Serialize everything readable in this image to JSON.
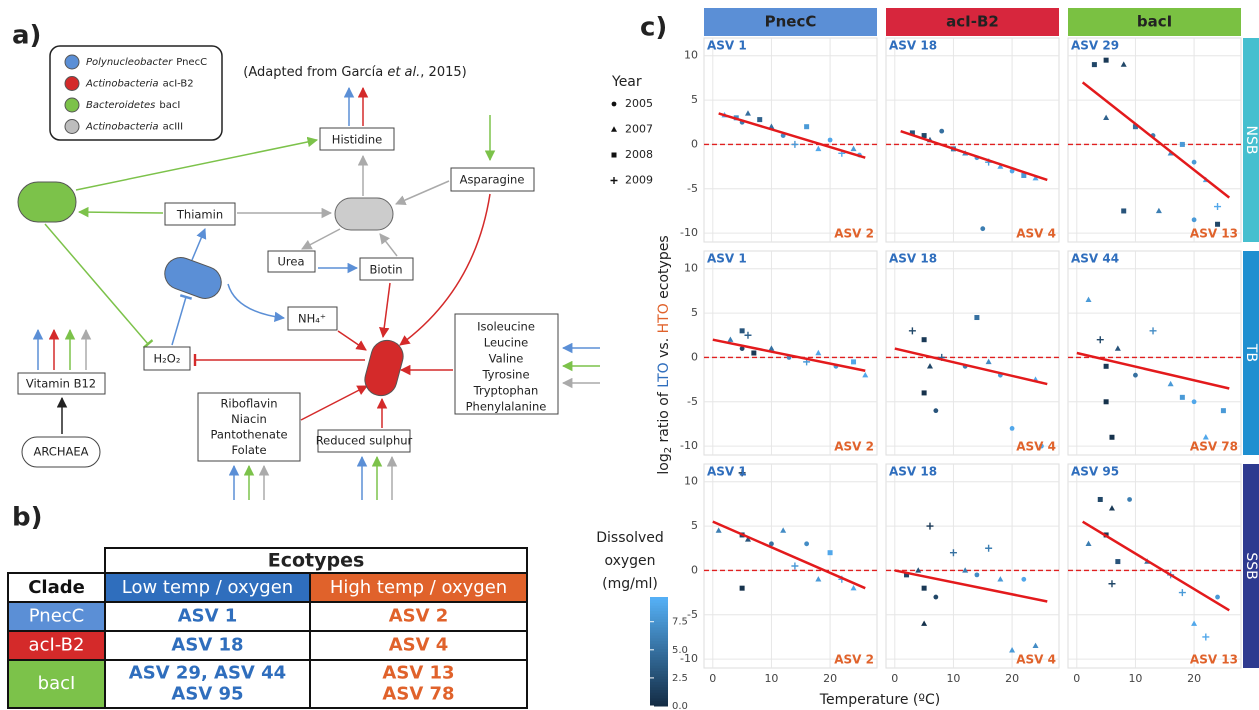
{
  "panel_a": {
    "label": "a)",
    "legend": [
      {
        "genus": "Polynucleobacter",
        "group": "PnecC",
        "color": "#5b8fd6"
      },
      {
        "genus": "Actinobacteria",
        "group": "acI-B2",
        "color": "#d42a2a"
      },
      {
        "genus": "Bacteroidetes",
        "group": "bacI",
        "color": "#7cc24a"
      },
      {
        "genus": "Actinobacteria",
        "group": "acIII",
        "color": "#bdbdbd"
      }
    ],
    "citation": [
      "(Adapted from García ",
      "et al.",
      ", 2015)"
    ],
    "nodes": {
      "histidine": "Histidine",
      "asparagine": "Asparagine",
      "thiamin": "Thiamin",
      "urea": "Urea",
      "biotin": "Biotin",
      "ammonium": "NH₄⁺",
      "peroxide": "H₂O₂",
      "b12": "Vitamin B12",
      "archaea": "ARCHAEA",
      "sulphur": "Reduced sulphur",
      "amino_acids": [
        "Isoleucine",
        "Leucine",
        "Valine",
        "Tyrosine",
        "Tryptophan",
        "Phenylalanine"
      ],
      "vitamins": [
        "Riboflavin",
        "Niacin",
        "Pantothenate",
        "Folate"
      ]
    }
  },
  "panel_b": {
    "label": "b)",
    "header": "Ecotypes",
    "columns": [
      "Clade",
      "Low temp / oxygen",
      "High temp / oxygen"
    ],
    "rows": [
      {
        "clade": "PnecC",
        "color": "#5b8fd6",
        "low": [
          "ASV 1"
        ],
        "high": [
          "ASV 2"
        ]
      },
      {
        "clade": "acI-B2",
        "color": "#d42a2a",
        "low": [
          "ASV 18"
        ],
        "high": [
          "ASV 4"
        ]
      },
      {
        "clade": "bacI",
        "color": "#7cc24a",
        "low": [
          "ASV 29, ASV 44",
          "ASV 95"
        ],
        "high": [
          "ASV 13",
          "ASV 78"
        ]
      }
    ]
  },
  "chart_data": {
    "type": "scatter",
    "label": "c)",
    "xlabel": "Temperature (ºC)",
    "ylabel": [
      "log",
      "2",
      " ratio of ",
      "LTO",
      " vs. ",
      "HTO",
      " ecotypes"
    ],
    "xlim": [
      -1.5,
      28
    ],
    "xticks": [
      0,
      10,
      20
    ],
    "ylim": [
      -11,
      12
    ],
    "yticks": [
      10,
      5,
      0,
      -5,
      -10
    ],
    "hline": 0,
    "columns": [
      {
        "name": "PnecC",
        "color": "#5b8fd6"
      },
      {
        "name": "acI-B2",
        "color": "#d7263d"
      },
      {
        "name": "bacI",
        "color": "#7ac142"
      }
    ],
    "rows": [
      {
        "name": "NSB",
        "color": "#46bfcf"
      },
      {
        "name": "TB",
        "color": "#1f8fd0"
      },
      {
        "name": "SSB",
        "color": "#2e3a8f"
      }
    ],
    "year_legend": {
      "title": "Year",
      "values": [
        2005,
        2007,
        2008,
        2009
      ]
    },
    "colorbar": {
      "title": [
        "Dissolved",
        "oxygen",
        "(mg/ml)"
      ],
      "lim": [
        0,
        9.7
      ],
      "ticks": [
        {
          "value": 0,
          "label": "0.0"
        },
        {
          "value": 2.5,
          "label": "2.5"
        },
        {
          "value": 5,
          "label": "5.0"
        },
        {
          "value": 7.5,
          "label": "7.5"
        }
      ]
    },
    "facets": [
      [
        {
          "lto": "ASV 1",
          "hto": "ASV 2",
          "x": [
            2,
            4,
            5,
            6,
            8,
            10,
            12,
            14,
            16,
            18,
            20,
            22,
            24,
            25
          ],
          "y": [
            3.3,
            3,
            2.5,
            3.5,
            2.8,
            2,
            1,
            0,
            2,
            -0.5,
            0.5,
            -1,
            -0.5,
            -1.2
          ],
          "year": [
            2007,
            2008,
            2005,
            2007,
            2008,
            2007,
            2005,
            2009,
            2008,
            2007,
            2005,
            2009,
            2007,
            2005
          ],
          "oxygen": [
            9,
            7,
            6,
            5,
            4,
            5,
            7,
            8,
            8,
            9,
            9,
            9,
            8,
            9
          ],
          "fit_x": [
            1,
            26
          ],
          "fit_y": [
            3.5,
            -1.5
          ]
        },
        {
          "lto": "ASV 18",
          "hto": "ASV 4",
          "x": [
            3,
            5,
            6,
            8,
            10,
            12,
            14,
            16,
            18,
            20,
            22,
            24,
            15
          ],
          "y": [
            1.3,
            1,
            0.5,
            1.5,
            -0.5,
            -1,
            -1.5,
            -2,
            -2.5,
            -3,
            -3.5,
            -3.8,
            -9.5
          ],
          "year": [
            2008,
            2008,
            2007,
            2005,
            2008,
            2007,
            2005,
            2009,
            2007,
            2005,
            2008,
            2007,
            2005
          ],
          "oxygen": [
            3,
            2,
            4,
            5,
            6,
            7,
            8,
            8,
            9,
            9,
            8,
            9,
            6
          ],
          "fit_x": [
            1,
            26
          ],
          "fit_y": [
            1.5,
            -4
          ]
        },
        {
          "lto": "ASV 29",
          "hto": "ASV 13",
          "x": [
            3,
            5,
            8,
            5,
            10,
            13,
            16,
            18,
            20,
            22,
            24,
            8,
            14,
            20,
            24
          ],
          "y": [
            9,
            9.5,
            9,
            3,
            2,
            1,
            -1,
            0,
            -2,
            -4,
            -7,
            -7.5,
            -7.5,
            -8.5,
            -9
          ],
          "year": [
            2008,
            2008,
            2007,
            2007,
            2008,
            2005,
            2007,
            2008,
            2005,
            2007,
            2009,
            2008,
            2007,
            2005,
            2008
          ],
          "oxygen": [
            2,
            1,
            2,
            4,
            5,
            6,
            7,
            8,
            8,
            9,
            9,
            3,
            6,
            8,
            2
          ],
          "fit_x": [
            1,
            26
          ],
          "fit_y": [
            7,
            -6
          ]
        }
      ],
      [
        {
          "lto": "ASV 1",
          "hto": "ASV 2",
          "x": [
            3,
            5,
            5,
            6,
            7,
            10,
            13,
            16,
            18,
            21,
            24,
            26
          ],
          "y": [
            2,
            3,
            1,
            2.5,
            0.5,
            1,
            0,
            -0.5,
            0.5,
            -1,
            -0.5,
            -2
          ],
          "year": [
            2007,
            2008,
            2005,
            2009,
            2008,
            2007,
            2005,
            2009,
            2007,
            2005,
            2008,
            2007
          ],
          "oxygen": [
            6,
            3,
            2,
            4,
            1,
            5,
            7,
            8,
            9,
            8,
            9,
            9
          ],
          "fit_x": [
            0,
            26
          ],
          "fit_y": [
            2,
            -1.5
          ]
        },
        {
          "lto": "ASV 18",
          "hto": "ASV 4",
          "x": [
            3,
            5,
            5,
            6,
            7,
            8,
            12,
            14,
            16,
            18,
            20,
            24,
            25
          ],
          "y": [
            3,
            2,
            -4,
            -1,
            -6,
            0,
            -1,
            4.5,
            -0.5,
            -2,
            -8,
            -2.5,
            -10
          ],
          "year": [
            2009,
            2008,
            2008,
            2007,
            2005,
            2009,
            2005,
            2008,
            2007,
            2005,
            2005,
            2007,
            2005
          ],
          "oxygen": [
            2,
            1,
            0.5,
            2,
            3,
            4,
            6,
            5,
            7,
            8,
            9,
            9,
            9
          ],
          "fit_x": [
            0,
            26
          ],
          "fit_y": [
            1,
            -3
          ]
        },
        {
          "lto": "ASV 44",
          "hto": "ASV 78",
          "x": [
            2,
            4,
            5,
            5,
            6,
            7,
            10,
            13,
            16,
            18,
            20,
            22,
            25
          ],
          "y": [
            6.5,
            2,
            -1,
            -5,
            -9,
            1,
            -2,
            3,
            -3,
            -4.5,
            -5,
            -9,
            -6
          ],
          "year": [
            2007,
            2009,
            2008,
            2008,
            2008,
            2007,
            2005,
            2009,
            2007,
            2008,
            2005,
            2007,
            2008
          ],
          "oxygen": [
            8,
            2,
            1,
            0.5,
            0.5,
            3,
            5,
            7,
            8,
            8,
            9,
            9,
            8
          ],
          "fit_x": [
            0,
            26
          ],
          "fit_y": [
            0.5,
            -3.5
          ]
        }
      ],
      [
        {
          "lto": "ASV 1",
          "hto": "ASV 2",
          "x": [
            1,
            5,
            5,
            6,
            5,
            10,
            12,
            14,
            16,
            18,
            20,
            22,
            24
          ],
          "y": [
            4.5,
            11,
            4,
            3.5,
            -2,
            3,
            4.5,
            0.5,
            3,
            -1,
            2,
            -1,
            -2
          ],
          "year": [
            2007,
            2009,
            2008,
            2007,
            2008,
            2005,
            2007,
            2009,
            2005,
            2007,
            2008,
            2009,
            2007
          ],
          "oxygen": [
            6,
            1,
            2,
            3,
            0.5,
            5,
            7,
            8,
            7,
            8,
            9,
            9,
            9
          ],
          "fit_x": [
            0,
            26
          ],
          "fit_y": [
            5.5,
            -2
          ]
        },
        {
          "lto": "ASV 18",
          "hto": "ASV 4",
          "x": [
            2,
            4,
            5,
            5,
            6,
            7,
            10,
            12,
            14,
            16,
            18,
            20,
            22,
            24
          ],
          "y": [
            -0.5,
            0,
            -2,
            -6,
            5,
            -3,
            2,
            0,
            -0.5,
            2.5,
            -1,
            -9,
            -1,
            -8.5
          ],
          "year": [
            2008,
            2007,
            2008,
            2007,
            2009,
            2005,
            2009,
            2007,
            2005,
            2009,
            2007,
            2007,
            2005,
            2007
          ],
          "oxygen": [
            2,
            3,
            1,
            0.5,
            1,
            2,
            5,
            6,
            7,
            6,
            8,
            8,
            9,
            7
          ],
          "fit_x": [
            0,
            26
          ],
          "fit_y": [
            0,
            -3.5
          ]
        },
        {
          "lto": "ASV 95",
          "hto": "ASV 13",
          "x": [
            2,
            4,
            5,
            6,
            6,
            7,
            9,
            12,
            16,
            18,
            20,
            22,
            24
          ],
          "y": [
            3,
            8,
            4,
            7,
            -1.5,
            1,
            8,
            1,
            -0.5,
            -2.5,
            -6,
            -7.5,
            -3
          ],
          "year": [
            2007,
            2008,
            2008,
            2007,
            2009,
            2008,
            2005,
            2007,
            2009,
            2009,
            2007,
            2009,
            2005
          ],
          "oxygen": [
            6,
            2,
            1,
            1,
            2,
            3,
            6,
            5,
            8,
            8,
            9,
            9,
            8
          ],
          "fit_x": [
            1,
            26
          ],
          "fit_y": [
            5.5,
            -4.5
          ]
        }
      ]
    ]
  }
}
